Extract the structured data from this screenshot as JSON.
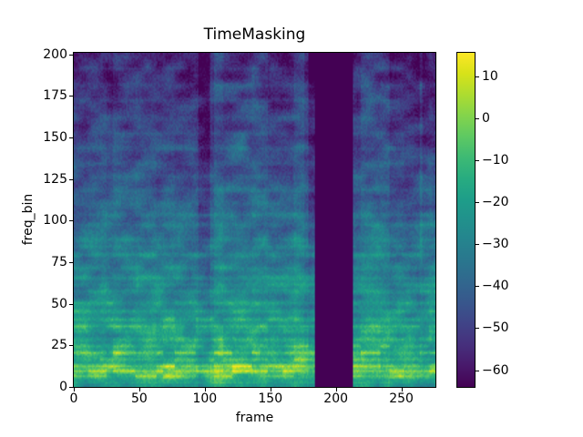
{
  "chart_data": {
    "type": "heatmap",
    "title": "TimeMasking",
    "xlabel": "frame",
    "ylabel": "freq_bin",
    "x_range": [
      0,
      276
    ],
    "y_range": [
      0,
      201
    ],
    "x_ticks": [
      0,
      50,
      100,
      150,
      200,
      250
    ],
    "y_ticks": [
      0,
      25,
      50,
      75,
      100,
      125,
      150,
      175,
      200
    ],
    "grid": false,
    "colormap": "viridis",
    "colorbar": {
      "position": "right",
      "ticks": [
        10,
        0,
        -10,
        -20,
        -30,
        -40,
        -50,
        -60
      ],
      "vmin": -64,
      "vmax": 15.6
    },
    "masked_region": {
      "axis": "time",
      "start_frame": 184,
      "end_frame": 213,
      "fill_value": -64
    },
    "description": "Log-power audio spectrogram (viridis colormap) with a SpecAugment time mask: a solid dark vertical band spanning frames 184-213. Energy is highest (yellow horizontal harmonic streaks) at low frequency bins and decays toward purple at high bins, with blocky time-segment structure.",
    "colors": {
      "mask_fill": "#440154",
      "background": "#ffffff",
      "axes_edge": "#000000",
      "text": "#000000"
    }
  }
}
